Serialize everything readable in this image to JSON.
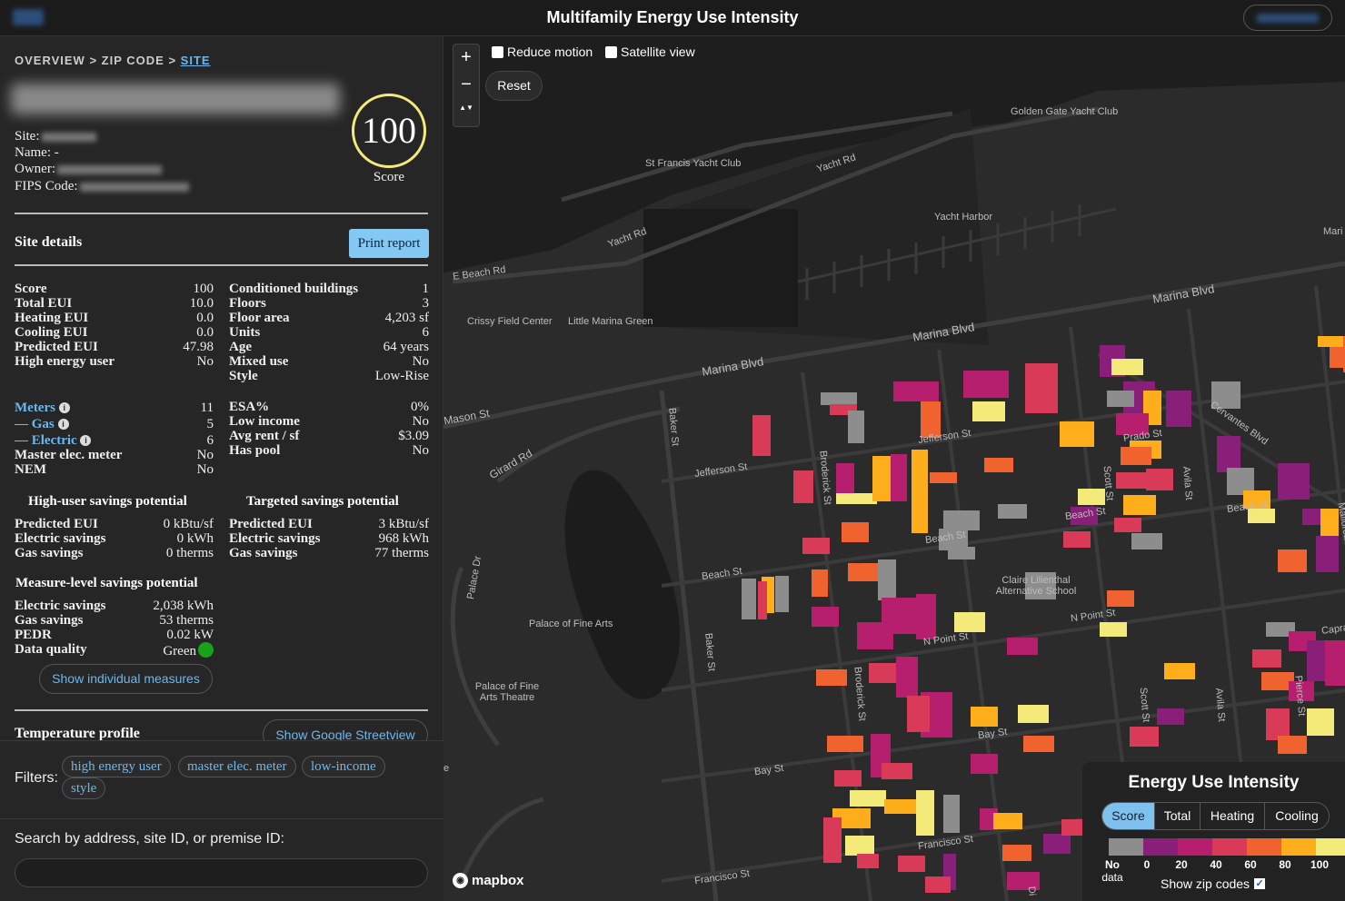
{
  "header": {
    "title": "Multifamily Energy Use Intensity"
  },
  "breadcrumb": {
    "overview": "OVERVIEW",
    "sep1": " > ",
    "zip": "ZIP CODE",
    "sep2": " > ",
    "site": "SITE"
  },
  "site": {
    "site_label": "Site:",
    "name_label": "Name:",
    "name_value": "-",
    "owner_label": "Owner:",
    "fips_label": "FIPS Code:",
    "score_value": "100",
    "score_caption": "Score"
  },
  "details": {
    "heading": "Site details",
    "print_label": "Print report",
    "left": [
      {
        "k": "Score",
        "v": "100"
      },
      {
        "k": "Total EUI",
        "v": "10.0"
      },
      {
        "k": "Heating EUI",
        "v": "0.0"
      },
      {
        "k": "Cooling EUI",
        "v": "0.0"
      },
      {
        "k": "Predicted EUI",
        "v": "47.98"
      },
      {
        "k": "High energy user",
        "v": "No"
      }
    ],
    "right": [
      {
        "k": "Conditioned buildings",
        "v": "1"
      },
      {
        "k": "Floors",
        "v": "3"
      },
      {
        "k": "Floor area",
        "v": "4,203 sf"
      },
      {
        "k": "Units",
        "v": "6"
      },
      {
        "k": "Age",
        "v": "64 years"
      },
      {
        "k": "Mixed use",
        "v": "No"
      },
      {
        "k": "Style",
        "v": "Low-Rise"
      }
    ],
    "meters": [
      {
        "k": "Meters",
        "v": "11"
      },
      {
        "k": "— Gas",
        "v": "5"
      },
      {
        "k": "— Electric",
        "v": "6"
      },
      {
        "k": "Master elec. meter",
        "v": "No"
      },
      {
        "k": "NEM",
        "v": "No"
      }
    ],
    "esa": [
      {
        "k": "ESA%",
        "v": "0%"
      },
      {
        "k": "Low income",
        "v": "No"
      },
      {
        "k": "Avg rent / sf",
        "v": "$3.09"
      },
      {
        "k": "Has pool",
        "v": "No"
      }
    ]
  },
  "savings": {
    "high_heading": "High-user savings potential",
    "high": [
      {
        "k": "Predicted EUI",
        "v": "0 kBtu/sf"
      },
      {
        "k": "Electric savings",
        "v": "0 kWh"
      },
      {
        "k": "Gas savings",
        "v": "0 therms"
      }
    ],
    "targeted_heading": "Targeted savings potential",
    "targeted": [
      {
        "k": "Predicted EUI",
        "v": "3 kBtu/sf"
      },
      {
        "k": "Electric savings",
        "v": "968 kWh"
      },
      {
        "k": "Gas savings",
        "v": "77 therms"
      }
    ],
    "measure_heading": "Measure-level savings potential",
    "measure": [
      {
        "k": "Electric savings",
        "v": "2,038 kWh"
      },
      {
        "k": "Gas savings",
        "v": "53 therms"
      },
      {
        "k": "PEDR",
        "v": "0.02 kW"
      }
    ],
    "data_quality_label": "Data quality",
    "data_quality_value": "Green",
    "show_measures_label": "Show individual measures"
  },
  "temperature": {
    "heading": "Temperature profile",
    "streetview_label": "Show Google Streetview"
  },
  "filters": {
    "label": "Filters:",
    "chips": [
      "high energy user",
      "master elec. meter",
      "low-income",
      "style"
    ]
  },
  "search": {
    "label": "Search by address, site ID, or premise ID:",
    "placeholder": ""
  },
  "map": {
    "zoom_in": "+",
    "zoom_out": "−",
    "compass": "▲▼",
    "reduce_motion": "Reduce motion",
    "satellite": "Satellite view",
    "reset": "Reset",
    "attribution": "mapbox",
    "labels": {
      "golden_gate_yacht_club": "Golden Gate Yacht Club",
      "st_francis_yacht_club": "St Francis Yacht Club",
      "yacht_rd1": "Yacht Rd",
      "yacht_rd2": "Yacht Rd",
      "yacht_harbor": "Yacht Harbor",
      "mari": "Mari",
      "e_beach_rd": "E Beach Rd",
      "crissy": "Crissy Field Center",
      "little_marina_green": "Little Marina Green",
      "marina_blvd1": "Marina Blvd",
      "marina_blvd2": "Marina Blvd",
      "marina_blvd3": "Marina Blvd",
      "mason_st": "Mason St",
      "girard_rd": "Girard Rd",
      "baker_st1": "Baker St",
      "baker_st2": "Baker St",
      "jefferson_st1": "Jefferson St",
      "jefferson_st2": "Jefferson St",
      "broderick_st1": "Broderick St",
      "broderick_st2": "Broderick St",
      "prado_st": "Prado St",
      "cervantes_blvd": "Cervantes Blvd",
      "scott_st1": "Scott St",
      "scott_st2": "Scott St",
      "avila_st1": "Avila St",
      "avila_st2": "Avila St",
      "beach_st1": "Beach St",
      "beach_st2": "Beach St",
      "beach_st3": "Beach St",
      "beach_st4": "Beach St",
      "mallorca_way": "Mallorca Way",
      "palace_dr": "Palace Dr",
      "palace_fine_arts": "Palace of Fine Arts",
      "palace_theatre": "Palace of Fine Arts Theatre",
      "claire_lilienthal": "Claire Lilienthal Alternative School",
      "n_point_st1": "N Point St",
      "n_point_st2": "N Point St",
      "capra": "Capra",
      "pierce_st": "Pierce St",
      "bay_st1": "Bay St",
      "bay_st2": "Bay St",
      "francisco_st1": "Francisco St",
      "francisco_st2": "Francisco St",
      "di": "Di",
      "e": "e"
    }
  },
  "legend": {
    "title": "Energy Use Intensity",
    "tabs": [
      "Score",
      "Total",
      "Heating",
      "Cooling"
    ],
    "active_tab": "Score",
    "colors": [
      "#8d8d8d",
      "#8a1f7a",
      "#b51f6e",
      "#d93a57",
      "#f0622e",
      "#fdae1a",
      "#f4ea7a"
    ],
    "ticks": [
      "No",
      "0",
      "20",
      "40",
      "60",
      "80",
      "100"
    ],
    "nodata_second_line": "data",
    "zip_label": "Show zip codes",
    "zip_checked": "✓"
  }
}
